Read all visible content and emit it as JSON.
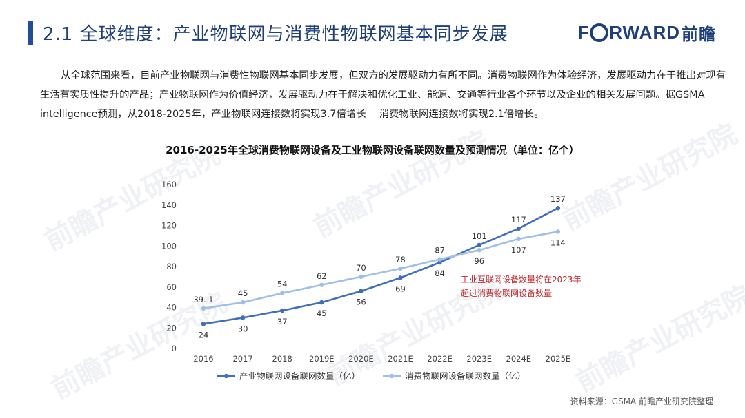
{
  "header": {
    "title": "2.1  全球维度：产业物联网与消费性物联网基本同步发展",
    "logo_text": "FORWARD前瞻"
  },
  "body_text": "从全球范围来看，目前产业物联网与消费性物联网基本同步发展，但双方的发展驱动力有所不同。消费物联网作为体验经济，发展驱动力在于推出对现有生活有实质性提升的产品；产业物联网作为价值经济，发展驱动力在于解决和优化工业、能源、交通等行业各个环节以及企业的相关发展问题。据GSMA intelligence预测，从2018-2025年，产业物联网连接数将实现3.7倍增长　 消费物联网连接数将实现2.1倍增长。",
  "source": "资料来源：GSMA 前瞻产业研究院整理",
  "watermark": "前瞻产业研究院",
  "colors": {
    "brand": "#1f3f7a",
    "industrial": "#3f6fb8",
    "consumer": "#9fbfe6",
    "annotation": "#c0282b"
  },
  "chart_data": {
    "type": "line",
    "title": "2016-2025年全球消费物联网设备及工业物联网设备联网数量及预测情况（单位：亿个）",
    "categories": [
      "2016",
      "2017",
      "2018",
      "2019E",
      "2020E",
      "2021E",
      "2022E",
      "2023E",
      "2024E",
      "2025E"
    ],
    "series": [
      {
        "name": "产业物联网设备联网数量（亿）",
        "values": [
          24,
          30,
          37,
          45,
          56,
          69,
          84,
          101,
          117,
          137
        ],
        "labels": [
          "24",
          "30",
          "37",
          "45",
          "56",
          "69",
          "84",
          "101",
          "117",
          "137"
        ],
        "label_position": [
          "below",
          "below",
          "below",
          "below",
          "below",
          "below",
          "below",
          "above",
          "above",
          "above"
        ]
      },
      {
        "name": "消费物联网设备联网数量（亿）",
        "values": [
          39.1,
          45,
          54,
          62,
          70,
          78,
          87,
          96,
          107,
          114
        ],
        "labels": [
          "39. 1",
          "45",
          "54",
          "62",
          "70",
          "78",
          "87",
          "96",
          "107",
          "114"
        ],
        "label_position": [
          "above",
          "above",
          "above",
          "above",
          "above",
          "above",
          "above",
          "below",
          "below",
          "below"
        ]
      }
    ],
    "ylim": [
      0,
      160
    ],
    "yticks": [
      0,
      20,
      40,
      60,
      80,
      100,
      120,
      140,
      160
    ],
    "grid": false,
    "legend_position": "bottom",
    "annotation": {
      "lines": [
        "工业互联网设备数量将在2023年",
        "超过消费物联网设备数量"
      ]
    }
  }
}
